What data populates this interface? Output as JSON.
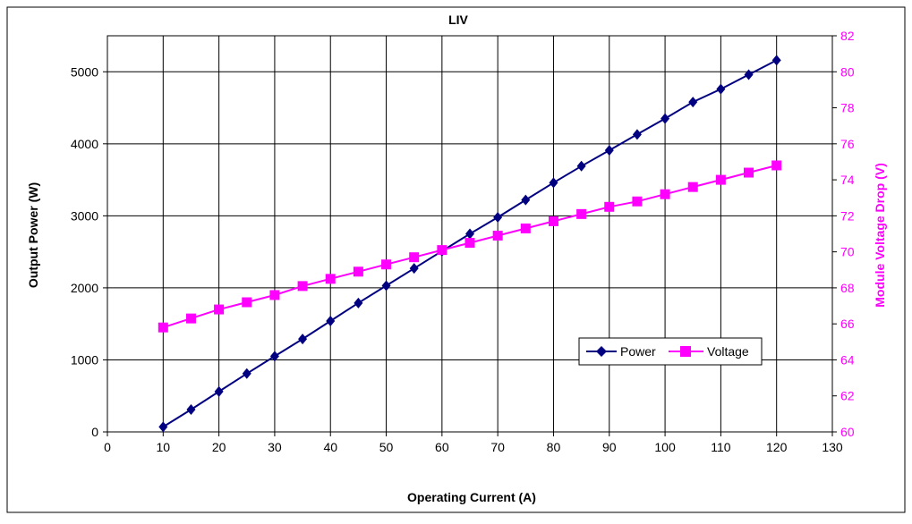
{
  "chart_data": {
    "type": "line",
    "title": "LIV",
    "xlabel": "Operating Current (A)",
    "ylabel": "Output Power (W)",
    "y2label": "Module Voltage Drop (V)",
    "xlim": [
      0,
      130
    ],
    "ylim": [
      0,
      5500
    ],
    "y2lim": [
      60,
      82
    ],
    "xticks": [
      "0",
      "10",
      "20",
      "30",
      "40",
      "50",
      "60",
      "70",
      "80",
      "90",
      "100",
      "110",
      "120",
      "130"
    ],
    "yticks": [
      "0",
      "1000",
      "2000",
      "3000",
      "4000",
      "5000"
    ],
    "y2ticks": [
      "60",
      "62",
      "64",
      "66",
      "68",
      "70",
      "72",
      "74",
      "76",
      "78",
      "80",
      "82"
    ],
    "grid": true,
    "legend_position": "lower-right",
    "x": [
      10,
      15,
      20,
      25,
      30,
      35,
      40,
      45,
      50,
      55,
      60,
      65,
      70,
      75,
      80,
      85,
      90,
      95,
      100,
      105,
      110,
      115,
      120
    ],
    "series": [
      {
        "name": "Power",
        "axis": "left",
        "color": "#000080",
        "marker": "diamond",
        "values": [
          70,
          310,
          560,
          810,
          1050,
          1290,
          1540,
          1790,
          2030,
          2270,
          2510,
          2750,
          2980,
          3220,
          3460,
          3690,
          3910,
          4130,
          4350,
          4580,
          4760,
          4960,
          5160
        ]
      },
      {
        "name": "Voltage",
        "axis": "right",
        "color": "#ff00ff",
        "marker": "square",
        "values": [
          65.8,
          66.3,
          66.8,
          67.2,
          67.6,
          68.1,
          68.5,
          68.9,
          69.3,
          69.7,
          70.1,
          70.5,
          70.9,
          71.3,
          71.7,
          72.1,
          72.5,
          72.8,
          73.2,
          73.6,
          74.0,
          74.4,
          74.8
        ]
      }
    ]
  }
}
